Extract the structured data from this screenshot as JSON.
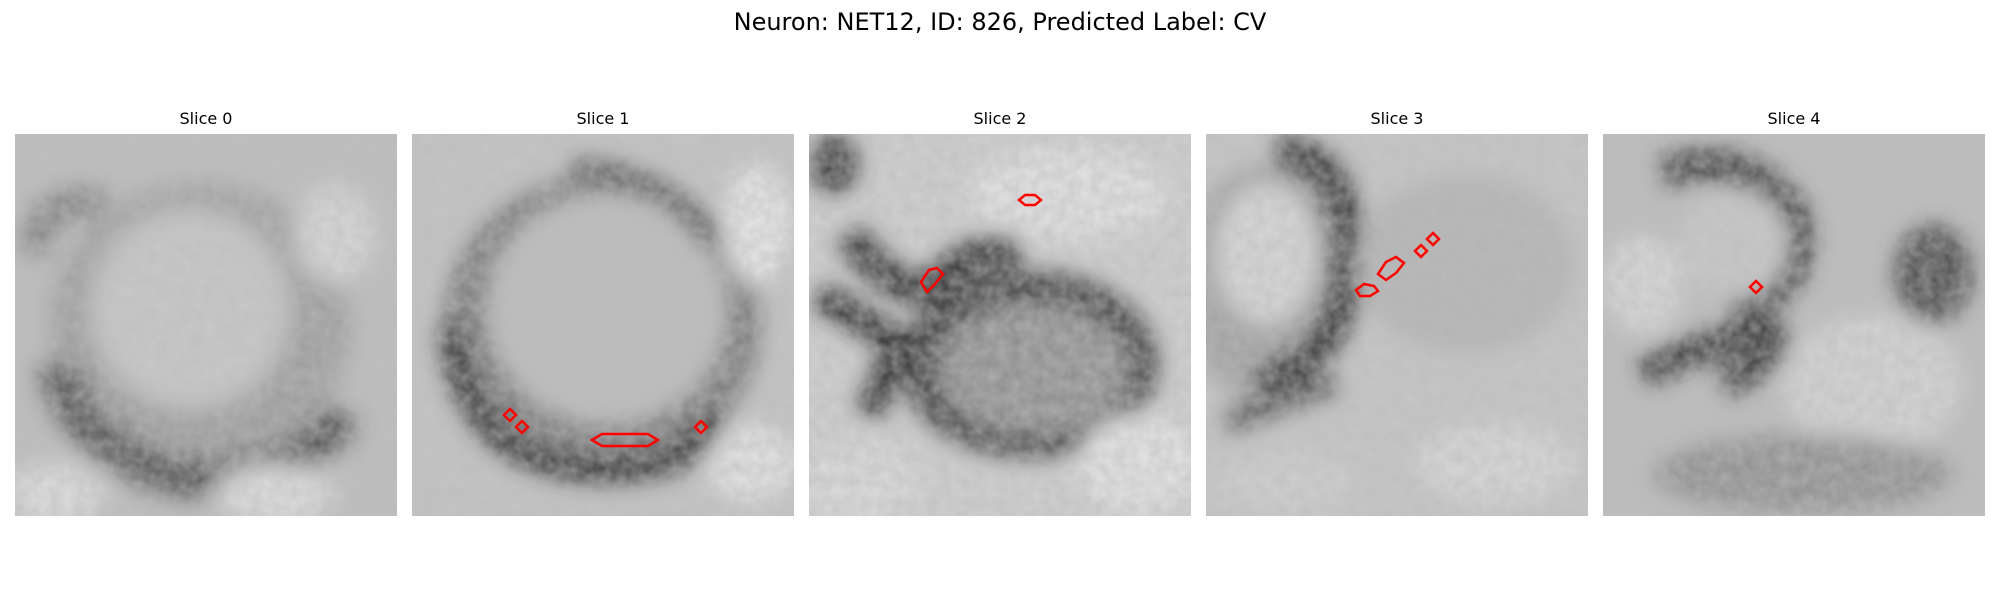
{
  "figure": {
    "title": "Neuron: NET12, ID: 826, Predicted Label: CV",
    "outline_color": "#ff0000"
  },
  "panels": [
    {
      "title": "Slice 0"
    },
    {
      "title": "Slice 1"
    },
    {
      "title": "Slice 2"
    },
    {
      "title": "Slice 3"
    },
    {
      "title": "Slice 4"
    }
  ]
}
